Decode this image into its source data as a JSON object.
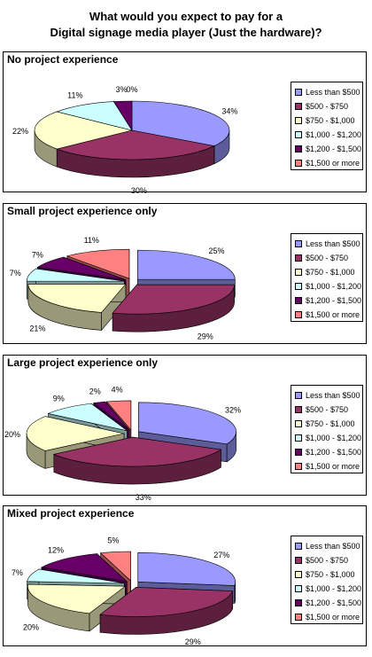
{
  "title_line1": "What would you expect to pay for a",
  "title_line2": "Digital signage media player (Just the hardware)?",
  "legend": [
    {
      "label": "Less than $500",
      "color": "#9999ff"
    },
    {
      "label": "$500 - $750",
      "color": "#993366"
    },
    {
      "label": "$750 - $1,000",
      "color": "#ffffcc"
    },
    {
      "label": "$1,000 - $1,200",
      "color": "#ccffff"
    },
    {
      "label": "$1,200 - $1,500",
      "color": "#660066"
    },
    {
      "label": "$1,500 or more",
      "color": "#ff8080"
    }
  ],
  "chart_data": [
    {
      "type": "pie",
      "title": "No project experience",
      "categories": [
        "Less than $500",
        "$500 - $750",
        "$750 - $1,000",
        "$1,000 - $1,200",
        "$1,200 - $1,500",
        "$1,500 or more"
      ],
      "values": [
        34,
        30,
        22,
        11,
        3,
        0
      ],
      "labels": [
        "34%",
        "30%",
        "22%",
        "11%",
        "3%",
        "0%"
      ],
      "legend_position": "right",
      "exploded": false
    },
    {
      "type": "pie",
      "title": "Small project experience only",
      "categories": [
        "Less than $500",
        "$500 - $750",
        "$750 - $1,000",
        "$1,000 - $1,200",
        "$1,200 - $1,500",
        "$1,500 or more"
      ],
      "values": [
        25,
        29,
        21,
        7,
        7,
        11
      ],
      "labels": [
        "25%",
        "29%",
        "21%",
        "7%",
        "7%",
        "11%"
      ],
      "legend_position": "right",
      "exploded": true
    },
    {
      "type": "pie",
      "title": "Large project experience only",
      "categories": [
        "Less than $500",
        "$500 - $750",
        "$750 - $1,000",
        "$1,000 - $1,200",
        "$1,200 - $1,500",
        "$1,500 or more"
      ],
      "values": [
        32,
        33,
        20,
        9,
        2,
        4
      ],
      "labels": [
        "32%",
        "33%",
        "20%",
        "9%",
        "2%",
        "4%"
      ],
      "legend_position": "right",
      "exploded": true
    },
    {
      "type": "pie",
      "title": "Mixed project experience",
      "categories": [
        "Less than $500",
        "$500 - $750",
        "$750 - $1,000",
        "$1,000 - $1,200",
        "$1,200 - $1,500",
        "$1,500 or more"
      ],
      "values": [
        27,
        29,
        20,
        7,
        12,
        5
      ],
      "labels": [
        "27%",
        "29%",
        "20%",
        "7%",
        "12%",
        "5%"
      ],
      "legend_position": "right",
      "exploded": true
    }
  ]
}
